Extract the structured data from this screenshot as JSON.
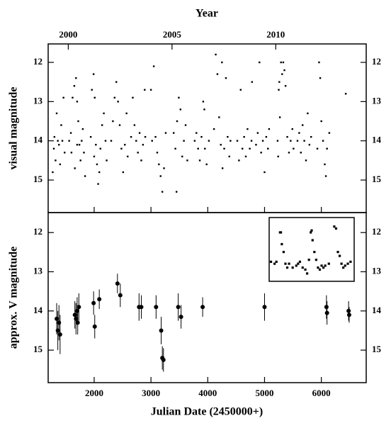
{
  "chart_data": [
    {
      "type": "scatter",
      "ylabel": "visual magnitude",
      "top_axis": {
        "label": "Year",
        "xlim": [
          1999.03,
          2014.36
        ],
        "xticks": [
          2000,
          2005,
          2010
        ]
      },
      "xlim": [
        1190,
        6790
      ],
      "xticks": [
        2000,
        3000,
        4000,
        5000,
        6000
      ],
      "ylim": [
        15.83,
        11.53
      ],
      "yticks": [
        12,
        13,
        14,
        15
      ],
      "color": "#000000",
      "x": [
        1270,
        1290,
        1300,
        1320,
        1340,
        1360,
        1380,
        1400,
        1420,
        1440,
        1460,
        1480,
        1560,
        1590,
        1620,
        1650,
        1680,
        1700,
        1720,
        1740,
        1760,
        1780,
        1800,
        1820,
        1840,
        1600,
        1660,
        1700,
        1940,
        1960,
        1990,
        2010,
        2030,
        2050,
        2070,
        2090,
        2110,
        2140,
        2170,
        2200,
        2220,
        2000,
        2300,
        2330,
        2360,
        2390,
        2420,
        2450,
        2480,
        2510,
        2540,
        2570,
        2590,
        2650,
        2680,
        2710,
        2740,
        2770,
        2800,
        2830,
        2860,
        2900,
        2890,
        3020,
        3050,
        3080,
        3110,
        3140,
        3170,
        3200,
        3230,
        3260,
        3000,
        3400,
        3430,
        3460,
        3490,
        3520,
        3550,
        3580,
        3610,
        3640,
        3450,
        3770,
        3800,
        3830,
        3860,
        3890,
        3920,
        3950,
        3980,
        4020,
        3940,
        4110,
        4140,
        4170,
        4200,
        4230,
        4260,
        4290,
        4320,
        4350,
        4380,
        4400,
        4250,
        4520,
        4550,
        4580,
        4610,
        4640,
        4670,
        4700,
        4740,
        4770,
        4780,
        4850,
        4880,
        4910,
        4940,
        4970,
        5000,
        5030,
        5060,
        5080,
        5230,
        5250,
        5260,
        5270,
        5290,
        5310,
        5330,
        5350,
        5370,
        5400,
        5430,
        5460,
        5490,
        5510,
        5240,
        5580,
        5610,
        5640,
        5670,
        5700,
        5730,
        5760,
        5790,
        5820,
        5930,
        5960,
        5980,
        6000,
        6030,
        6060,
        6080,
        6100,
        6140,
        6430
      ],
      "y": [
        14.8,
        14.2,
        13.9,
        14.5,
        13.3,
        14.0,
        14.1,
        14.6,
        13.6,
        14.0,
        12.9,
        14.3,
        14.0,
        13.8,
        12.9,
        12.6,
        12.4,
        13.0,
        13.5,
        14.1,
        14.5,
        14.0,
        13.7,
        14.3,
        14.9,
        14.3,
        14.7,
        14.1,
        13.9,
        12.7,
        12.3,
        12.9,
        14.1,
        14.6,
        15.1,
        14.8,
        14.2,
        13.6,
        13.3,
        14.0,
        14.5,
        14.4,
        14.0,
        13.5,
        12.9,
        12.5,
        13.0,
        13.6,
        14.2,
        14.8,
        14.1,
        13.3,
        14.4,
        13.9,
        12.9,
        13.6,
        14.0,
        14.3,
        13.8,
        14.5,
        14.1,
        13.9,
        12.7,
        14.0,
        12.1,
        13.9,
        14.3,
        14.6,
        14.9,
        15.3,
        14.7,
        13.8,
        12.7,
        13.8,
        14.2,
        13.5,
        12.9,
        13.2,
        14.4,
        14.0,
        13.6,
        14.5,
        15.3,
        14.0,
        13.8,
        14.2,
        14.5,
        13.9,
        13.0,
        14.2,
        14.6,
        14.0,
        13.2,
        13.7,
        11.8,
        12.3,
        13.4,
        14.1,
        14.7,
        14.2,
        12.4,
        13.9,
        14.4,
        14.0,
        12.0,
        14.0,
        14.5,
        12.7,
        14.2,
        13.9,
        14.4,
        13.7,
        14.2,
        14.0,
        12.5,
        14.1,
        13.8,
        12.0,
        14.3,
        14.0,
        14.8,
        13.9,
        14.2,
        13.7,
        14.0,
        12.7,
        12.5,
        13.4,
        12.0,
        12.3,
        12.0,
        12.2,
        12.6,
        13.9,
        14.3,
        14.0,
        13.7,
        14.2,
        14.4,
        14.0,
        13.8,
        14.3,
        13.6,
        14.0,
        14.5,
        13.3,
        14.1,
        13.9,
        14.2,
        12.0,
        12.4,
        13.5,
        14.0,
        14.6,
        14.9,
        14.2,
        13.8,
        12.8
      ]
    },
    {
      "type": "errorbar",
      "xlabel": "Julian Date (2450000+)",
      "ylabel": "approx. V magnitude",
      "xlim": [
        1190,
        6790
      ],
      "xticks": [
        2000,
        3000,
        4000,
        5000,
        6000
      ],
      "ylim": [
        15.83,
        11.49
      ],
      "yticks": [
        12,
        13,
        14,
        15
      ],
      "color": "#000000",
      "x": [
        1340,
        1360,
        1380,
        1400,
        1660,
        1680,
        1700,
        1710,
        1730,
        1990,
        2010,
        2090,
        2410,
        2460,
        2790,
        2830,
        3090,
        3180,
        3200,
        3220,
        3480,
        3530,
        3910,
        5000,
        6090,
        6100,
        6480,
        6490
      ],
      "y": [
        14.2,
        14.5,
        14.3,
        14.6,
        14.1,
        14.2,
        14.0,
        14.3,
        13.9,
        13.8,
        14.4,
        13.7,
        13.3,
        13.6,
        13.9,
        13.9,
        13.9,
        14.5,
        15.2,
        15.25,
        13.9,
        14.15,
        13.9,
        13.9,
        13.9,
        14.05,
        14.0,
        14.1
      ],
      "errors": [
        0.4,
        0.5,
        0.45,
        0.5,
        0.35,
        0.4,
        0.35,
        0.3,
        0.35,
        0.3,
        0.3,
        0.25,
        0.25,
        0.3,
        0.35,
        0.3,
        0.3,
        0.35,
        0.3,
        0.3,
        0.35,
        0.3,
        0.25,
        0.35,
        0.3,
        0.3,
        0.25,
        0.2
      ],
      "inset": {
        "xlim": [
          5150,
          5620
        ],
        "ylim": [
          13.25,
          11.62
        ],
        "x": [
          5160,
          5180,
          5190,
          5210,
          5215,
          5220,
          5230,
          5240,
          5250,
          5260,
          5280,
          5300,
          5310,
          5320,
          5335,
          5350,
          5360,
          5370,
          5380,
          5385,
          5390,
          5400,
          5410,
          5420,
          5430,
          5440,
          5450,
          5460,
          5480,
          5510,
          5520,
          5530,
          5540,
          5550,
          5560,
          5570,
          5585,
          5600
        ],
        "y": [
          12.75,
          12.8,
          12.75,
          12.0,
          12.0,
          12.3,
          12.5,
          12.8,
          12.9,
          12.8,
          12.9,
          12.85,
          12.8,
          12.75,
          12.9,
          12.95,
          13.05,
          12.7,
          12.0,
          11.95,
          12.2,
          12.5,
          12.7,
          12.9,
          12.95,
          12.85,
          12.9,
          12.85,
          12.8,
          11.85,
          11.9,
          12.5,
          12.6,
          12.8,
          12.9,
          12.85,
          12.8,
          12.75
        ]
      }
    }
  ]
}
